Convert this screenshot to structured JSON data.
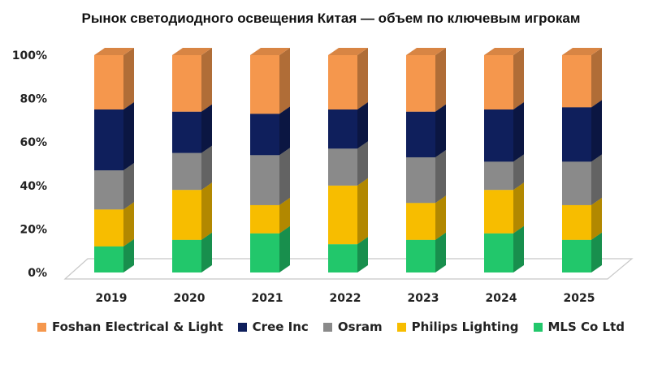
{
  "chart_data": {
    "type": "bar",
    "stacked": true,
    "normalized": true,
    "title": "Рынок светодиодного освещения Китая — объем по ключевым игрокам",
    "categories": [
      "2019",
      "2020",
      "2021",
      "2022",
      "2023",
      "2024",
      "2025"
    ],
    "series": [
      {
        "name": "MLS Co Ltd",
        "color": "#22c76b",
        "values": [
          12,
          15,
          18,
          13,
          15,
          18,
          15
        ]
      },
      {
        "name": "Philips Lighting",
        "color": "#f7bd00",
        "values": [
          17,
          23,
          13,
          27,
          17,
          20,
          16
        ]
      },
      {
        "name": "Osram",
        "color": "#8a8a8a",
        "values": [
          18,
          17,
          23,
          17,
          21,
          13,
          20
        ]
      },
      {
        "name": "Cree Inc",
        "color": "#0f1f5c",
        "values": [
          28,
          19,
          19,
          18,
          21,
          24,
          25
        ]
      },
      {
        "name": "Foshan Electrical & Light",
        "color": "#f5974d",
        "values": [
          25,
          26,
          27,
          25,
          26,
          25,
          24
        ]
      }
    ],
    "legend_order": [
      "Foshan Electrical & Light",
      "Cree Inc",
      "Osram",
      "Philips Lighting",
      "MLS Co Ltd"
    ],
    "y_axis": {
      "min": 0,
      "max": 100,
      "ticks": [
        0,
        20,
        40,
        60,
        80,
        100
      ],
      "tick_format": "{v}%"
    },
    "legend_position": "bottom",
    "grid": false,
    "style": "3d-columns"
  }
}
